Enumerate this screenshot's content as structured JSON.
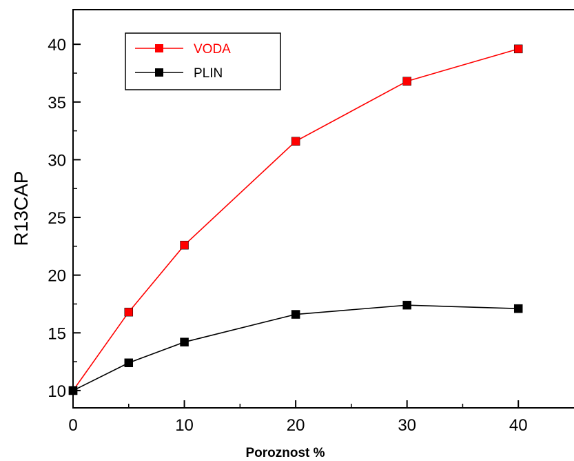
{
  "chart_data": {
    "type": "line",
    "xlabel": "Poroznost %",
    "ylabel": "R13CAP",
    "xlim": [
      0,
      45
    ],
    "ylim": [
      8.5,
      43
    ],
    "xticks": [
      0,
      10,
      20,
      30,
      40
    ],
    "yticks": [
      10,
      15,
      20,
      25,
      30,
      35,
      40
    ],
    "legend_position": "top-left",
    "grid": false,
    "series": [
      {
        "name": "VODA",
        "color": "#ff0000",
        "marker": "square",
        "x": [
          0,
          5,
          10,
          20,
          30,
          40
        ],
        "y": [
          10.0,
          16.8,
          22.6,
          31.6,
          36.8,
          39.6
        ]
      },
      {
        "name": "PLIN",
        "color": "#000000",
        "marker": "square",
        "x": [
          0,
          5,
          10,
          20,
          30,
          40
        ],
        "y": [
          10.0,
          12.4,
          14.2,
          16.6,
          17.4,
          17.1
        ]
      }
    ]
  }
}
